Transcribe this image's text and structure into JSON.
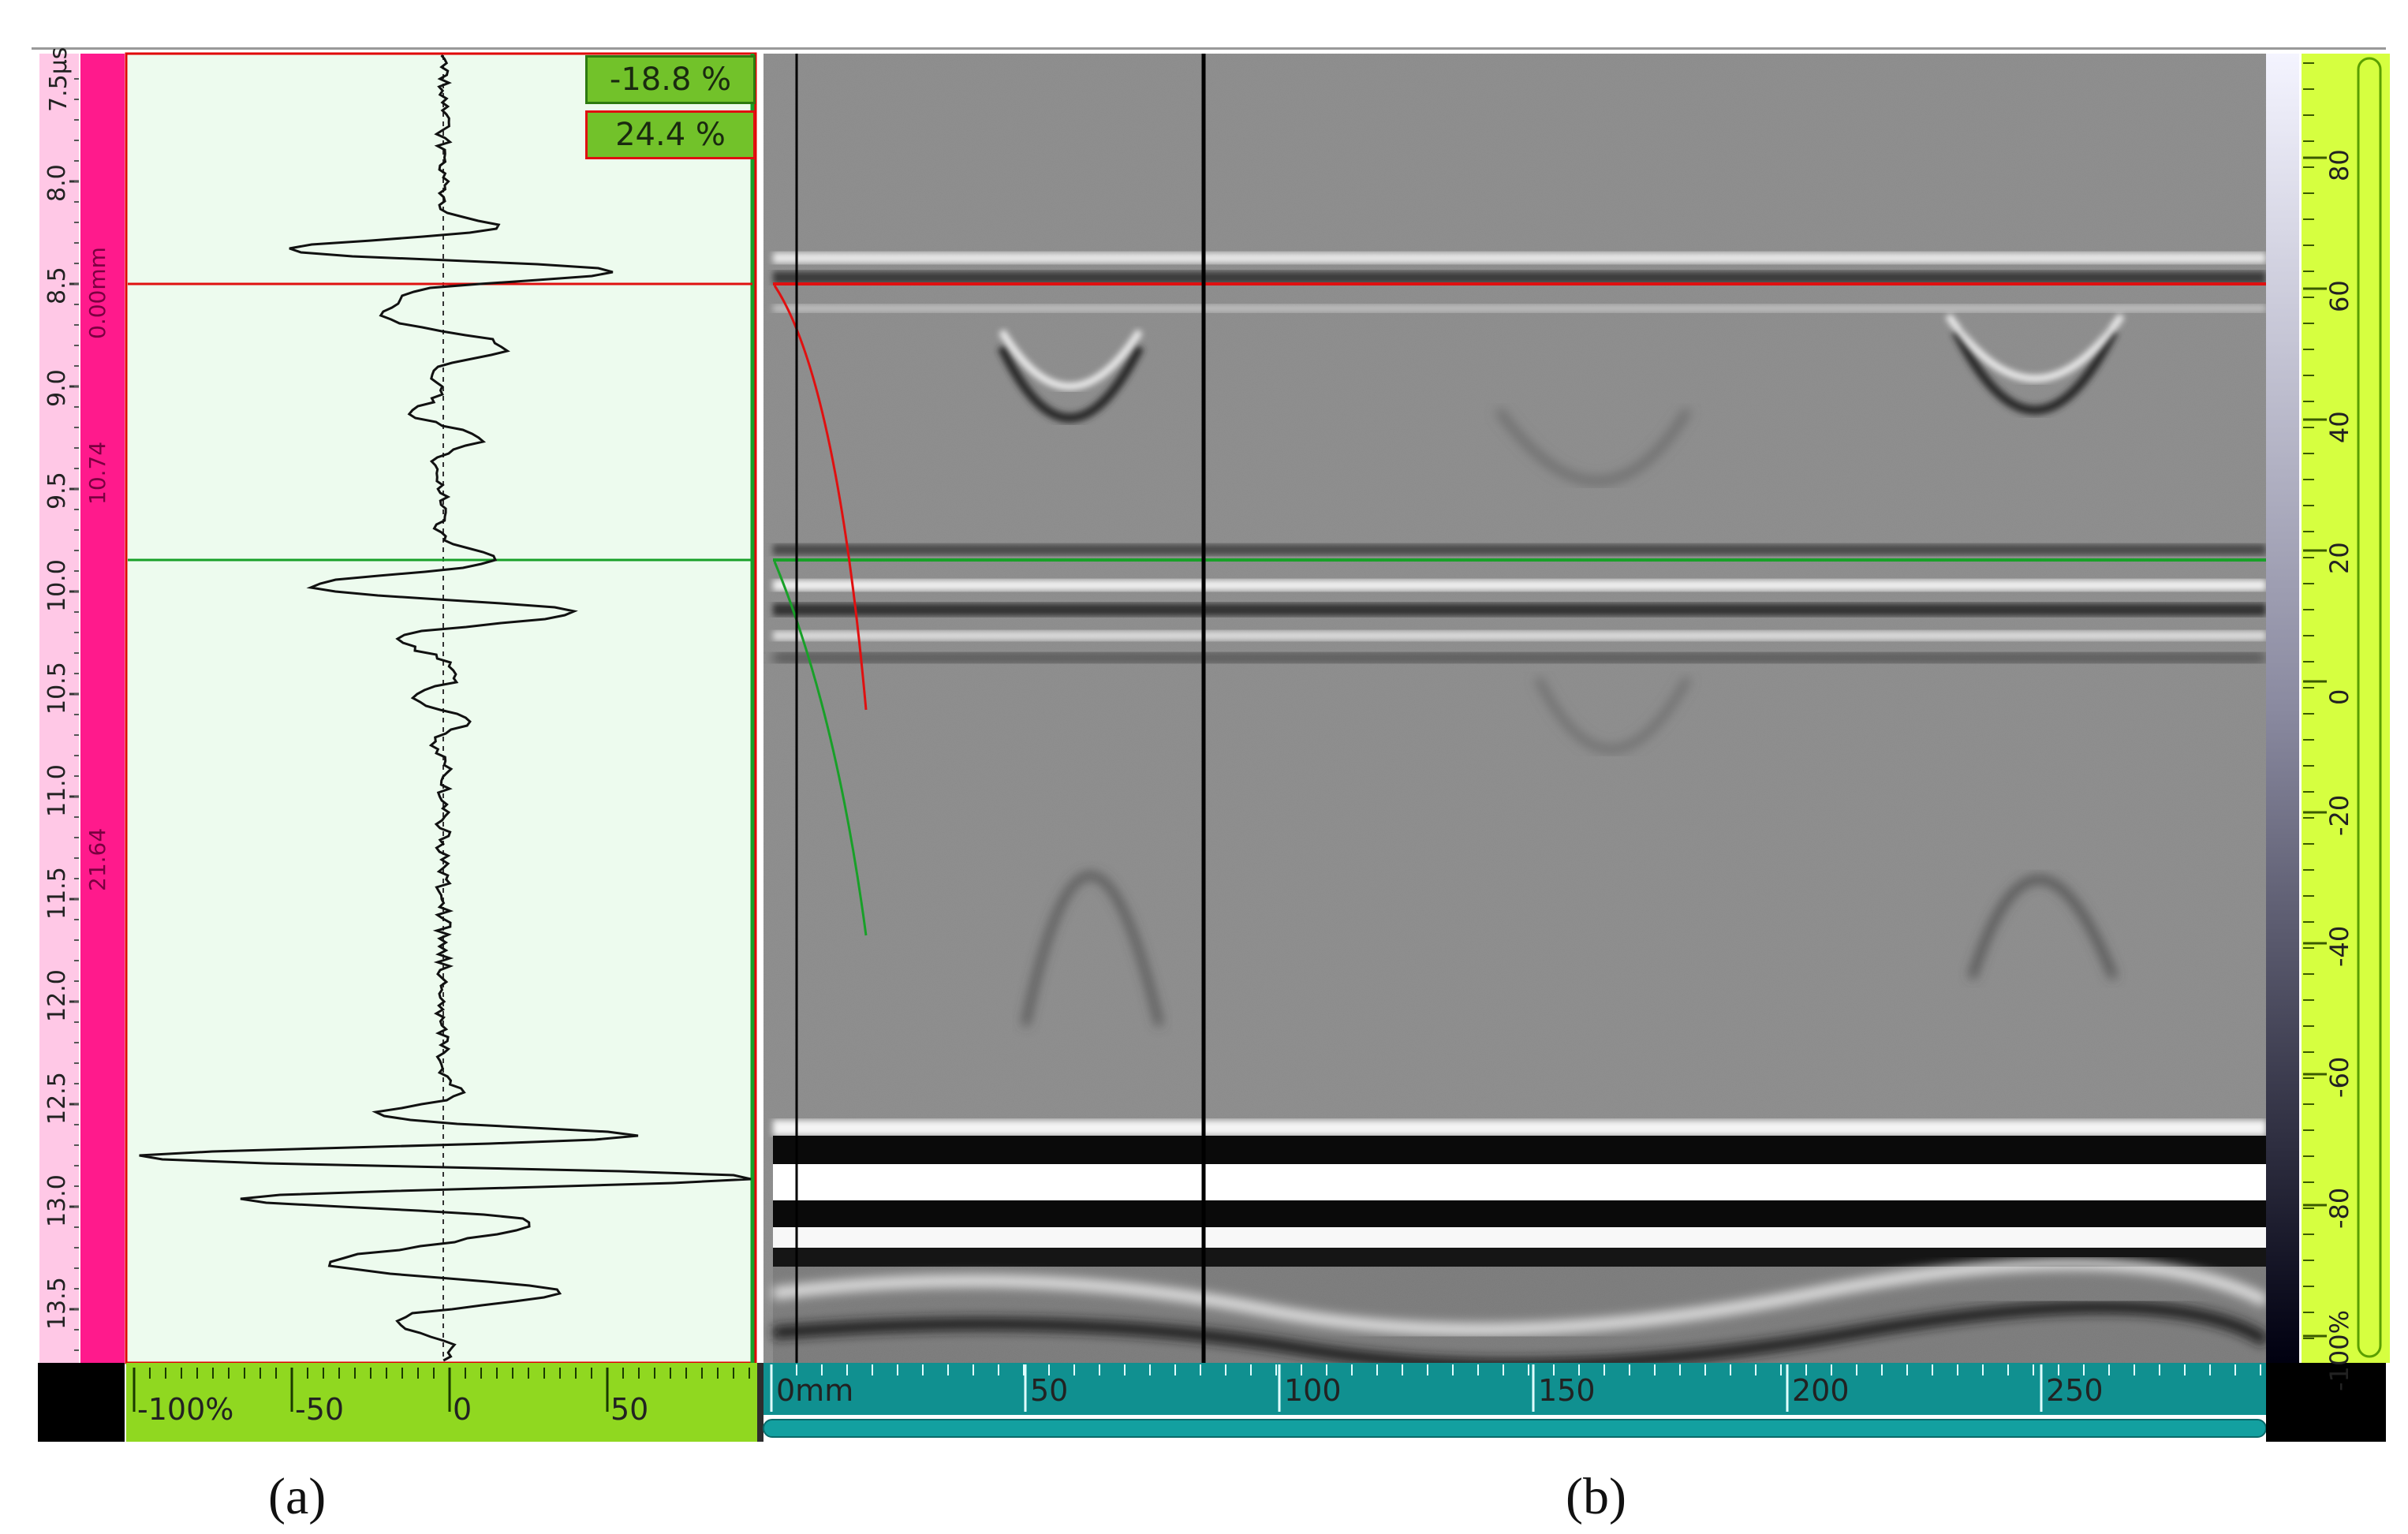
{
  "gate_readouts": {
    "gate_a": "-18.8 %",
    "gate_b": "24.4 %"
  },
  "time_axis": {
    "unit_label": "7.5µs",
    "ticks": [
      "8.0",
      "8.5",
      "9.0",
      "9.5",
      "10.0",
      "10.5",
      "11.0",
      "11.5",
      "12.0",
      "12.5",
      "13.0",
      "13.5"
    ]
  },
  "thickness_bar": {
    "top_label": "0.00mm",
    "mid_label": "10.74",
    "bottom_label": "21.64"
  },
  "amplitude_axis": {
    "ticks": [
      "-100%",
      "-50",
      "0",
      "50"
    ]
  },
  "scan_axis": {
    "ticks": [
      "0mm",
      "50",
      "100",
      "150",
      "200",
      "250"
    ]
  },
  "color_scale": {
    "ticks": [
      "80",
      "60",
      "40",
      "20",
      "0",
      "-20",
      "-40",
      "-60",
      "-80",
      "-100%"
    ]
  },
  "captions": {
    "left": "(a)",
    "right": "(b)"
  },
  "colors": {
    "gate_a": "#e01010",
    "gate_b": "#18a028",
    "pink_bar": "#ff1a8c",
    "green_panel": "#90d820",
    "teal_ruler": "#109090",
    "ascan_bg": "#edfbee",
    "bscan_gray": "#8a8a8a",
    "cursor": "#000000"
  }
}
